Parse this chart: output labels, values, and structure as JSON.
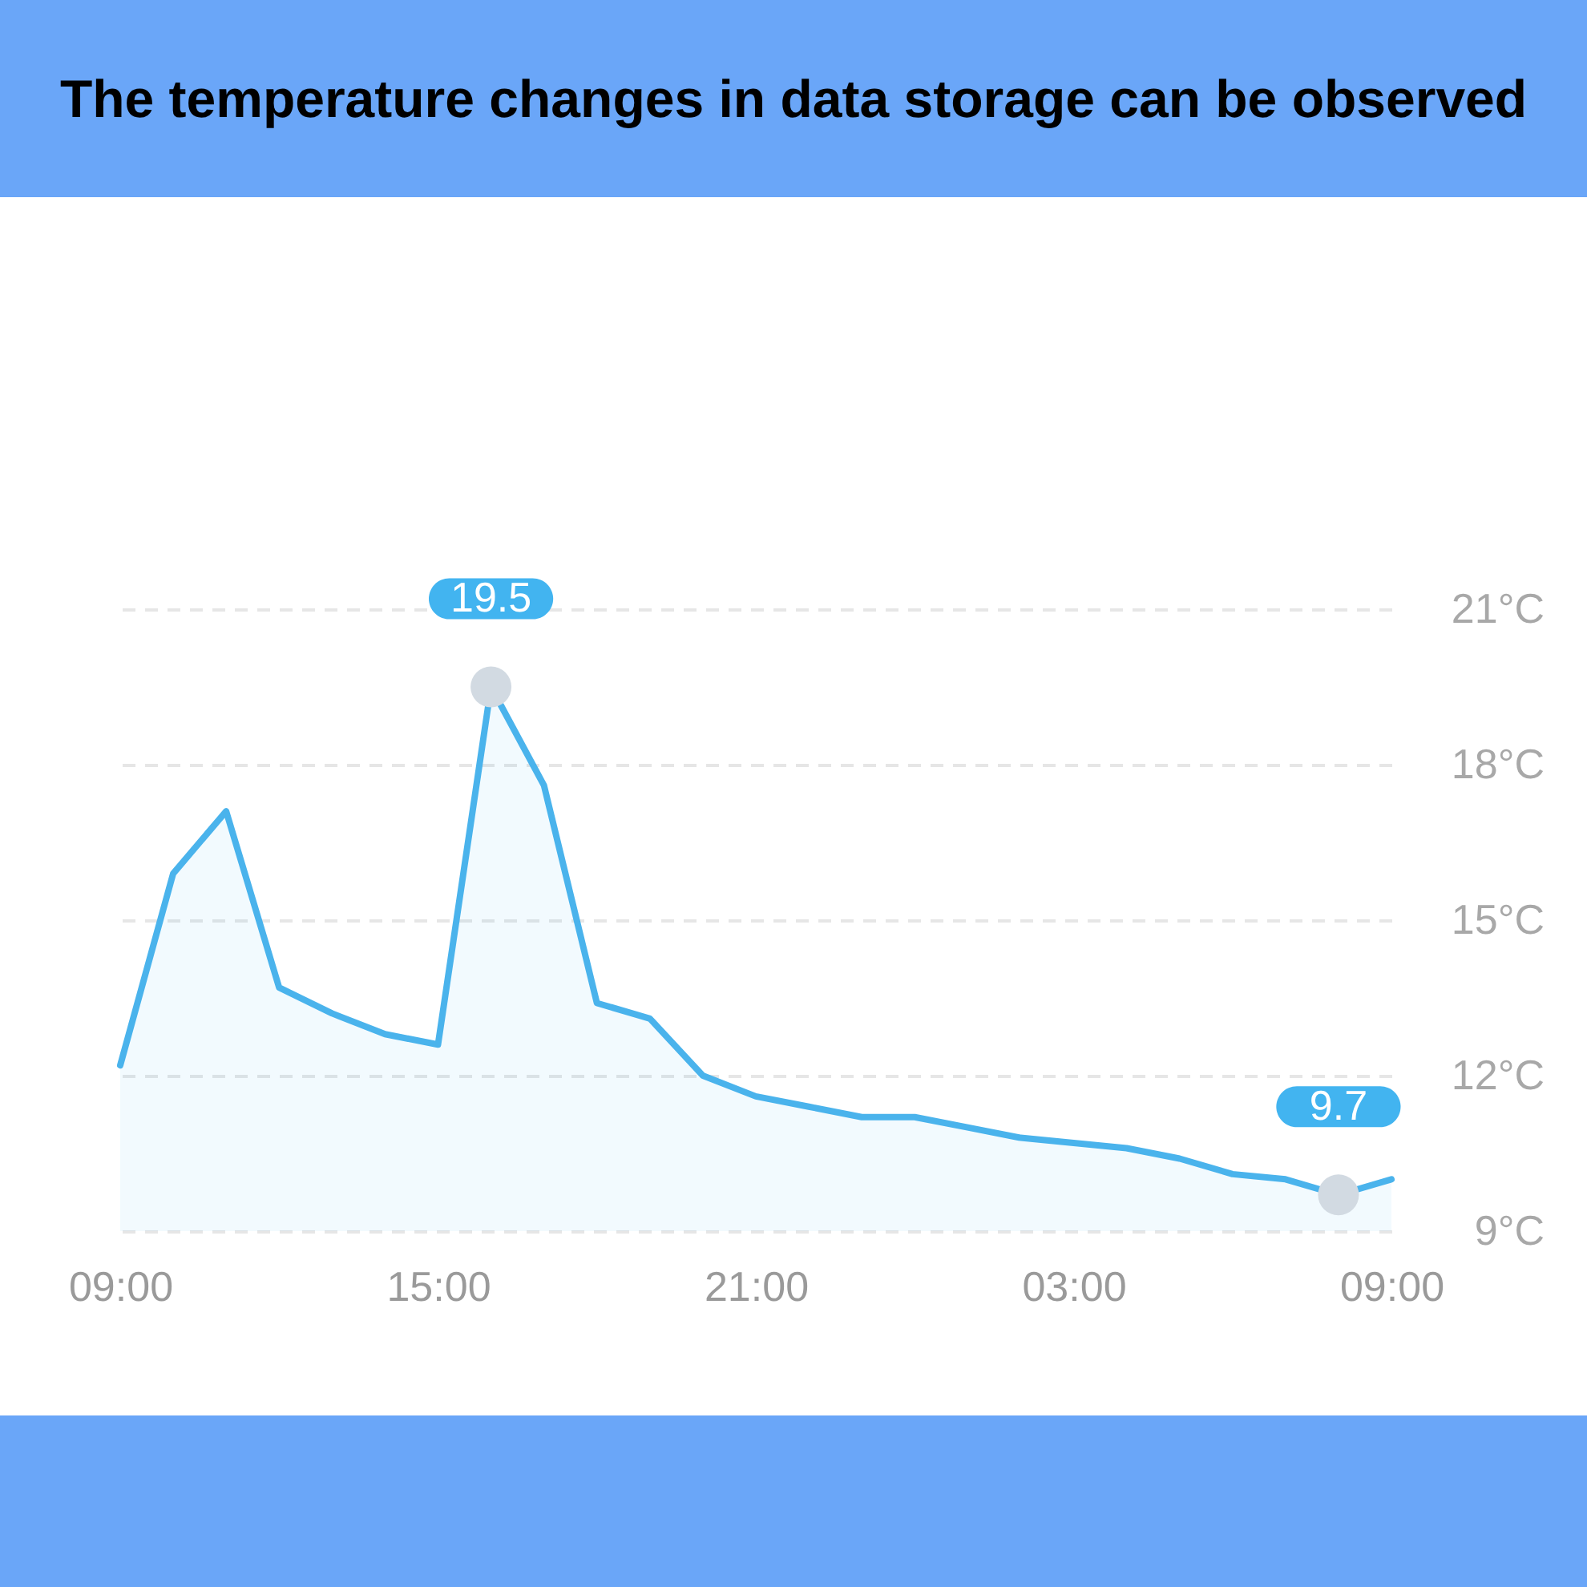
{
  "chart_data": {
    "type": "area",
    "title": "The temperature changes in data storage can be observed",
    "x": [
      "--01-01T09:00",
      "--01-01T10:00",
      "--01-01T11:00",
      "--01-01T12:00",
      "--01-01T13:00",
      "--01-01T14:00",
      "--01-01T15:00",
      "--01-01T16:00",
      "--01-01T17:00",
      "--01-01T18:00",
      "--01-01T19:00",
      "--01-01T20:00",
      "--01-01T21:00",
      "--01-01T22:00",
      "--01-01T23:00",
      "--01-02T00:00",
      "--01-02T01:00",
      "--01-02T02:00",
      "--01-02T03:00",
      "--01-02T04:00",
      "--01-02T05:00",
      "--01-02T06:00",
      "--01-02T07:00",
      "--01-02T08:00",
      "--01-02T09:00"
    ],
    "series": [
      {
        "color": "#4ab3ec",
        "values": [
          12.2,
          15.9,
          17.1,
          13.7,
          13.2,
          12.8,
          12.6,
          19.5,
          17.6,
          13.4,
          13.1,
          12.0,
          11.6,
          11.4,
          11.2,
          11.2,
          11.0,
          10.8,
          10.7,
          10.6,
          10.4,
          10.1,
          10.0,
          9.7,
          10.0
        ]
      }
    ],
    "xlim": [
      "--01-01T09:00",
      "--01-02T09:00"
    ],
    "xticks": [
      {
        "value": "--01-01T09:00",
        "label": "09:00"
      },
      {
        "value": "--01-01T15:00",
        "label": "15:00"
      },
      {
        "value": "--01-01T21:00",
        "label": "21:00"
      },
      {
        "value": "--01-02T03:00",
        "label": "03:00"
      },
      {
        "value": "--01-02T09:00",
        "label": "09:00"
      }
    ],
    "ylim": [
      9,
      21
    ],
    "yticks": [
      {
        "value": 9,
        "label": "9°C"
      },
      {
        "value": 12,
        "label": "12°C"
      },
      {
        "value": 15,
        "label": "15°C"
      },
      {
        "value": 18,
        "label": "18°C"
      },
      {
        "value": 21,
        "label": "21°C"
      }
    ],
    "annotations": [
      {
        "text": "19.5",
        "x": "--01-01T16:00",
        "y": 19.5
      },
      {
        "text": "9.7",
        "x": "--01-02T08:00",
        "y": 9.7
      }
    ],
    "grid": "y"
  }
}
